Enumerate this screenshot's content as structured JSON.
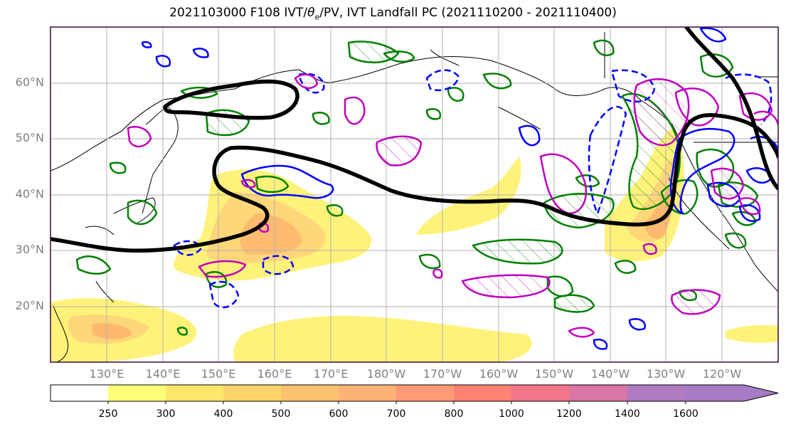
{
  "map": {
    "title_main": "2021103000 F108 IVT/",
    "title_theta": "θ",
    "title_sub": "e",
    "title_rest": "/PV, IVT Landfall PC (2021110200 - 2021110400)",
    "lat_labels": [
      "60°N",
      "50°N",
      "40°N",
      "30°N",
      "20°N"
    ],
    "lon_labels": [
      "130°E",
      "140°E",
      "150°E",
      "160°E",
      "170°E",
      "180°W",
      "170°W",
      "160°W",
      "150°W",
      "140°W",
      "130°W",
      "120°W"
    ],
    "colors": {
      "ivt_low": "#fff27a",
      "ivt_mid": "#ffd073",
      "ivt_high": "#ffb36b",
      "pv_contour": "#000000",
      "theta_warm": "#008000",
      "theta_cool": "#0000ff",
      "pc_contour": "#c000c0",
      "frame": "#3b0a3b"
    }
  },
  "colorbar": {
    "levels": [
      "250",
      "300",
      "400",
      "500",
      "600",
      "700",
      "800",
      "1000",
      "1200",
      "1400",
      "1600"
    ],
    "colors": [
      "#ffffff",
      "#ffff78",
      "#fde66a",
      "#fdd46a",
      "#fdc16f",
      "#ffb277",
      "#ff9a76",
      "#ff8272",
      "#f07688",
      "#d877a5",
      "#b07bc0",
      "#a77bc6"
    ]
  }
}
